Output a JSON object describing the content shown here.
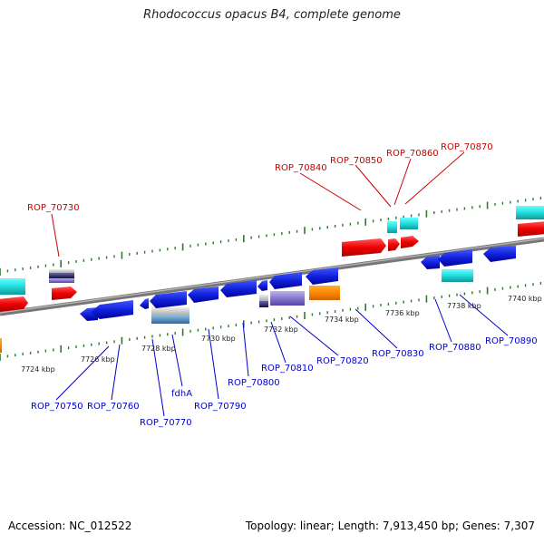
{
  "title": "Rhodococcus opacus B4, complete genome",
  "footer": {
    "accession": "Accession: NC_012522",
    "topology": "Topology: linear; Length: 7,913,450 bp; Genes: 7,307"
  },
  "colors": {
    "forward_label": "#cc0000",
    "reverse_label": "#0000cc",
    "backbone": "#8a8a8a",
    "tick": "#2d7a2d"
  },
  "kbp_labels": [
    "7724 kbp",
    "7726 kbp",
    "7728 kbp",
    "7730 kbp",
    "7732 kbp",
    "7734 kbp",
    "7736 kbp",
    "7738 kbp",
    "7740 kbp"
  ],
  "forward_gene_labels": [
    "ROP_70730",
    "ROP_70840",
    "ROP_70850",
    "ROP_70860",
    "ROP_70870"
  ],
  "reverse_gene_labels": [
    "ROP_70750",
    "ROP_70760",
    "ROP_70770",
    "fdhA",
    "ROP_70790",
    "ROP_70800",
    "ROP_70810",
    "ROP_70820",
    "ROP_70830",
    "ROP_70880",
    "ROP_70890"
  ]
}
